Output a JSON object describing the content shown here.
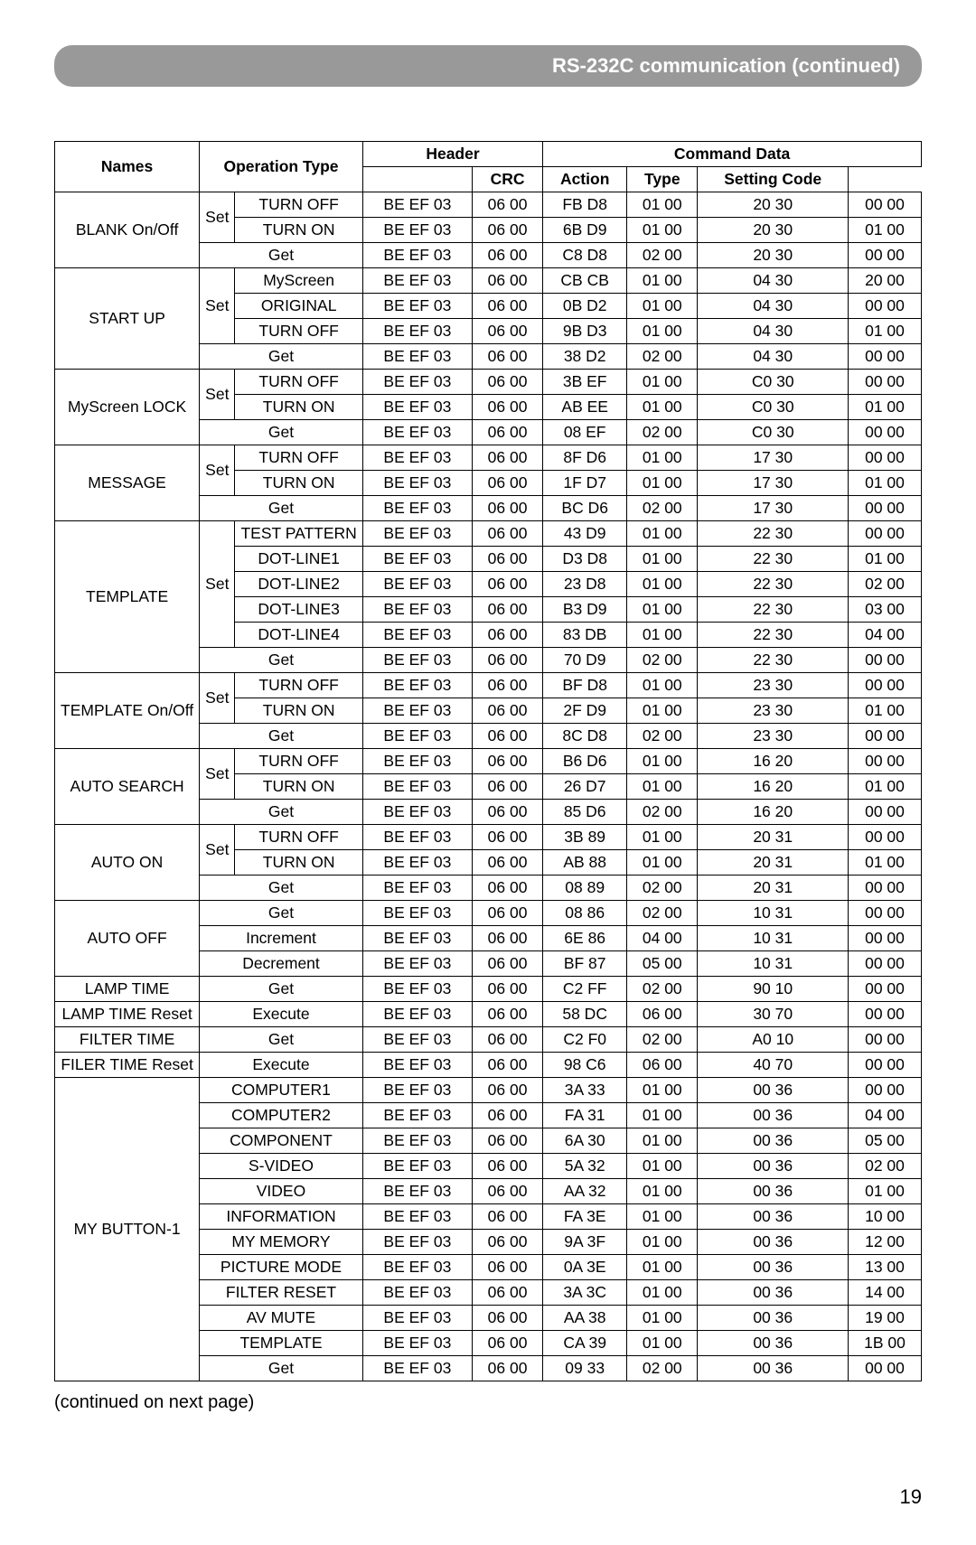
{
  "header_bar": "RS-232C communication (continued)",
  "continued_text": "(continued on next page)",
  "page_number": "19",
  "table": {
    "header": {
      "row1": [
        "Names",
        "Operation Type",
        "Header",
        "Command Data"
      ],
      "row2": [
        "CRC",
        "Action",
        "Type",
        "Setting Code"
      ]
    },
    "groups": [
      {
        "name": "BLANK On/Off",
        "name_rowspan": 3,
        "rows": [
          {
            "op_label": "Set",
            "op_rowspan": 2,
            "op2": "TURN OFF",
            "c": [
              "BE  EF",
              "03",
              "06  00",
              "FB  D8",
              "01  00",
              "20  30",
              "00  00"
            ]
          },
          {
            "op2": "TURN ON",
            "c": [
              "BE  EF",
              "03",
              "06  00",
              "6B  D9",
              "01  00",
              "20  30",
              "01  00"
            ]
          },
          {
            "op_label": "Get",
            "op_colspan": 2,
            "c": [
              "BE  EF",
              "03",
              "06  00",
              "C8  D8",
              "02  00",
              "20  30",
              "00  00"
            ]
          }
        ]
      },
      {
        "name": "START UP",
        "name_rowspan": 4,
        "rows": [
          {
            "op_label": "Set",
            "op_rowspan": 3,
            "op2": "MyScreen",
            "c": [
              "BE  EF",
              "03",
              "06  00",
              "CB  CB",
              "01  00",
              "04  30",
              "20  00"
            ]
          },
          {
            "op2": "ORIGINAL",
            "c": [
              "BE  EF",
              "03",
              "06  00",
              "0B  D2",
              "01  00",
              "04  30",
              "00  00"
            ]
          },
          {
            "op2": "TURN OFF",
            "c": [
              "BE  EF",
              "03",
              "06  00",
              "9B  D3",
              "01  00",
              "04  30",
              "01  00"
            ]
          },
          {
            "op_label": "Get",
            "op_colspan": 2,
            "c": [
              "BE  EF",
              "03",
              "06  00",
              "38  D2",
              "02  00",
              "04  30",
              "00  00"
            ]
          }
        ]
      },
      {
        "name": "MyScreen LOCK",
        "name_rowspan": 3,
        "rows": [
          {
            "op_label": "Set",
            "op_rowspan": 2,
            "op2": "TURN OFF",
            "c": [
              "BE  EF",
              "03",
              "06  00",
              "3B  EF",
              "01  00",
              "C0  30",
              "00  00"
            ]
          },
          {
            "op2": "TURN ON",
            "c": [
              "BE  EF",
              "03",
              "06  00",
              "AB  EE",
              "01  00",
              "C0  30",
              "01  00"
            ]
          },
          {
            "op_label": "Get",
            "op_colspan": 2,
            "c": [
              "BE  EF",
              "03",
              "06  00",
              "08  EF",
              "02  00",
              "C0  30",
              "00  00"
            ]
          }
        ]
      },
      {
        "name": "MESSAGE",
        "name_rowspan": 3,
        "rows": [
          {
            "op_label": "Set",
            "op_rowspan": 2,
            "op2": "TURN OFF",
            "c": [
              "BE  EF",
              "03",
              "06  00",
              "8F  D6",
              "01  00",
              "17  30",
              "00  00"
            ]
          },
          {
            "op2": "TURN ON",
            "c": [
              "BE  EF",
              "03",
              "06  00",
              "1F  D7",
              "01  00",
              "17  30",
              "01  00"
            ]
          },
          {
            "op_label": "Get",
            "op_colspan": 2,
            "c": [
              "BE  EF",
              "03",
              "06  00",
              "BC  D6",
              "02  00",
              "17  30",
              "00  00"
            ]
          }
        ]
      },
      {
        "name": "TEMPLATE",
        "name_rowspan": 6,
        "rows": [
          {
            "op_label": "Set",
            "op_rowspan": 5,
            "op2": "TEST PATTERN",
            "c": [
              "BE  EF",
              "03",
              "06  00",
              "43  D9",
              "01  00",
              "22  30",
              "00  00"
            ]
          },
          {
            "op2": "DOT-LINE1",
            "c": [
              "BE  EF",
              "03",
              "06  00",
              "D3  D8",
              "01  00",
              "22  30",
              "01  00"
            ]
          },
          {
            "op2": "DOT-LINE2",
            "c": [
              "BE  EF",
              "03",
              "06  00",
              "23  D8",
              "01  00",
              "22  30",
              "02  00"
            ]
          },
          {
            "op2": "DOT-LINE3",
            "c": [
              "BE  EF",
              "03",
              "06  00",
              "B3  D9",
              "01  00",
              "22  30",
              "03  00"
            ]
          },
          {
            "op2": "DOT-LINE4",
            "c": [
              "BE  EF",
              "03",
              "06  00",
              "83  DB",
              "01  00",
              "22  30",
              "04  00"
            ]
          },
          {
            "op_label": "Get",
            "op_colspan": 2,
            "c": [
              "BE  EF",
              "03",
              "06  00",
              "70  D9",
              "02  00",
              "22  30",
              "00  00"
            ]
          }
        ]
      },
      {
        "name": "TEMPLATE On/Off",
        "name_rowspan": 3,
        "rows": [
          {
            "op_label": "Set",
            "op_rowspan": 2,
            "op2": "TURN OFF",
            "c": [
              "BE  EF",
              "03",
              "06  00",
              "BF  D8",
              "01  00",
              "23  30",
              "00  00"
            ]
          },
          {
            "op2": "TURN ON",
            "c": [
              "BE  EF",
              "03",
              "06  00",
              "2F  D9",
              "01  00",
              "23  30",
              "01  00"
            ]
          },
          {
            "op_label": "Get",
            "op_colspan": 2,
            "c": [
              "BE  EF",
              "03",
              "06  00",
              "8C  D8",
              "02  00",
              "23  30",
              "00  00"
            ]
          }
        ]
      },
      {
        "name": "AUTO SEARCH",
        "name_rowspan": 3,
        "rows": [
          {
            "op_label": "Set",
            "op_rowspan": 2,
            "op2": "TURN OFF",
            "c": [
              "BE  EF",
              "03",
              "06  00",
              "B6  D6",
              "01  00",
              "16  20",
              "00  00"
            ]
          },
          {
            "op2": "TURN ON",
            "c": [
              "BE  EF",
              "03",
              "06  00",
              "26  D7",
              "01  00",
              "16  20",
              "01  00"
            ]
          },
          {
            "op_label": "Get",
            "op_colspan": 2,
            "c": [
              "BE  EF",
              "03",
              "06  00",
              "85  D6",
              "02  00",
              "16  20",
              "00  00"
            ]
          }
        ]
      },
      {
        "name": "AUTO ON",
        "name_rowspan": 3,
        "rows": [
          {
            "op_label": "Set",
            "op_rowspan": 2,
            "op2": "TURN OFF",
            "c": [
              "BE  EF",
              "03",
              "06  00",
              "3B  89",
              "01  00",
              "20  31",
              "00  00"
            ]
          },
          {
            "op2": "TURN ON",
            "c": [
              "BE  EF",
              "03",
              "06  00",
              "AB  88",
              "01  00",
              "20  31",
              "01  00"
            ]
          },
          {
            "op_label": "Get",
            "op_colspan": 2,
            "c": [
              "BE  EF",
              "03",
              "06  00",
              "08  89",
              "02  00",
              "20  31",
              "00  00"
            ]
          }
        ]
      },
      {
        "name": "AUTO OFF",
        "name_rowspan": 3,
        "rows": [
          {
            "op_label": "Get",
            "op_colspan": 2,
            "c": [
              "BE  EF",
              "03",
              "06  00",
              "08  86",
              "02  00",
              "10  31",
              "00  00"
            ]
          },
          {
            "op_label": "Increment",
            "op_colspan": 2,
            "c": [
              "BE  EF",
              "03",
              "06  00",
              "6E  86",
              "04  00",
              "10  31",
              "00  00"
            ]
          },
          {
            "op_label": "Decrement",
            "op_colspan": 2,
            "c": [
              "BE  EF",
              "03",
              "06  00",
              "BF  87",
              "05  00",
              "10  31",
              "00  00"
            ]
          }
        ]
      },
      {
        "name": "LAMP TIME",
        "name_rowspan": 1,
        "rows": [
          {
            "op_label": "Get",
            "op_colspan": 2,
            "c": [
              "BE  EF",
              "03",
              "06  00",
              "C2  FF",
              "02  00",
              "90  10",
              "00  00"
            ]
          }
        ]
      },
      {
        "name": "LAMP TIME Reset",
        "name_rowspan": 1,
        "rows": [
          {
            "op_label": "Execute",
            "op_colspan": 2,
            "c": [
              "BE  EF",
              "03",
              "06  00",
              "58  DC",
              "06  00",
              "30  70",
              "00  00"
            ]
          }
        ]
      },
      {
        "name": "FILTER TIME",
        "name_rowspan": 1,
        "rows": [
          {
            "op_label": "Get",
            "op_colspan": 2,
            "c": [
              "BE  EF",
              "03",
              "06  00",
              "C2  F0",
              "02  00",
              "A0  10",
              "00  00"
            ]
          }
        ]
      },
      {
        "name": "FILER TIME Reset",
        "name_rowspan": 1,
        "rows": [
          {
            "op_label": "Execute",
            "op_colspan": 2,
            "c": [
              "BE  EF",
              "03",
              "06  00",
              "98  C6",
              "06  00",
              "40  70",
              "00  00"
            ]
          }
        ]
      },
      {
        "name": "MY BUTTON-1",
        "name_rowspan": 12,
        "rows": [
          {
            "op_label": "COMPUTER1",
            "op_colspan": 2,
            "c": [
              "BE  EF",
              "03",
              "06  00",
              "3A  33",
              "01  00",
              "00  36",
              "00  00"
            ]
          },
          {
            "op_label": "COMPUTER2",
            "op_colspan": 2,
            "c": [
              "BE  EF",
              "03",
              "06  00",
              "FA  31",
              "01  00",
              "00  36",
              "04  00"
            ]
          },
          {
            "op_label": "COMPONENT",
            "op_colspan": 2,
            "c": [
              "BE  EF",
              "03",
              "06  00",
              "6A  30",
              "01  00",
              "00  36",
              "05  00"
            ]
          },
          {
            "op_label": "S-VIDEO",
            "op_colspan": 2,
            "c": [
              "BE  EF",
              "03",
              "06  00",
              "5A  32",
              "01  00",
              "00  36",
              "02  00"
            ]
          },
          {
            "op_label": "VIDEO",
            "op_colspan": 2,
            "c": [
              "BE  EF",
              "03",
              "06  00",
              "AA  32",
              "01  00",
              "00  36",
              "01  00"
            ]
          },
          {
            "op_label": "INFORMATION",
            "op_colspan": 2,
            "c": [
              "BE  EF",
              "03",
              "06  00",
              "FA  3E",
              "01  00",
              "00  36",
              "10  00"
            ]
          },
          {
            "op_label": "MY MEMORY",
            "op_colspan": 2,
            "c": [
              "BE  EF",
              "03",
              "06  00",
              "9A  3F",
              "01  00",
              "00  36",
              "12  00"
            ]
          },
          {
            "op_label": "PICTURE MODE",
            "op_colspan": 2,
            "c": [
              "BE  EF",
              "03",
              "06  00",
              "0A  3E",
              "01  00",
              "00  36",
              "13  00"
            ]
          },
          {
            "op_label": "FILTER RESET",
            "op_colspan": 2,
            "c": [
              "BE  EF",
              "03",
              "06  00",
              "3A  3C",
              "01  00",
              "00  36",
              "14  00"
            ]
          },
          {
            "op_label": "AV MUTE",
            "op_colspan": 2,
            "c": [
              "BE  EF",
              "03",
              "06  00",
              "AA  38",
              "01  00",
              "00  36",
              "19  00"
            ]
          },
          {
            "op_label": "TEMPLATE",
            "op_colspan": 2,
            "c": [
              "BE  EF",
              "03",
              "06  00",
              "CA  39",
              "01  00",
              "00  36",
              "1B  00"
            ]
          },
          {
            "op_label": "Get",
            "op_colspan": 2,
            "c": [
              "BE  EF",
              "03",
              "06  00",
              "09  33",
              "02  00",
              "00  36",
              "00  00"
            ]
          }
        ]
      }
    ]
  }
}
